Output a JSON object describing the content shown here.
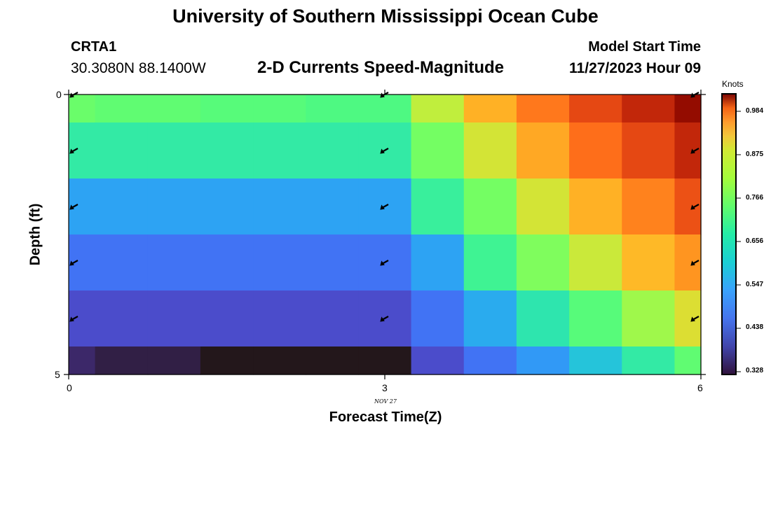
{
  "header": {
    "title": "University of Southern Mississippi Ocean Cube",
    "station": "CRTA1",
    "coords": "30.3080N  88.1400W",
    "subtitle": "2-D Currents Speed-Magnitude",
    "model_start_label": "Model Start Time",
    "model_start_value": "11/27/2023 Hour 09"
  },
  "footer": {
    "title": "University of Southern Mississippi Ocean Cube"
  },
  "chart_data": {
    "type": "heatmap",
    "title": "2-D Currents Speed-Magnitude",
    "xlabel": "Forecast Time(Z)",
    "ylabel": "Depth (ft)",
    "date_label": "NOV 27",
    "x_ticks": [
      0,
      3,
      6
    ],
    "y_ticks": [
      0,
      5
    ],
    "xlim": [
      0,
      6
    ],
    "ylim": [
      0,
      5
    ],
    "colorbar": {
      "title": "Knots",
      "ticks": [
        "0.984",
        "0.875",
        "0.766",
        "0.656",
        "0.547",
        "0.438",
        "0.328"
      ],
      "min": 0.31,
      "max": 1.03
    },
    "x_edges": [
      0,
      0.25,
      0.75,
      1.25,
      1.75,
      2.25,
      2.75,
      3.25,
      3.75,
      4.25,
      4.75,
      5.25,
      5.75,
      6.0
    ],
    "depth_edges": [
      0,
      0.5,
      1.5,
      2.5,
      3.5,
      4.5,
      5.0
    ],
    "speed_knots": [
      [
        0.63,
        0.62,
        0.62,
        0.61,
        0.61,
        0.6,
        0.6,
        0.71,
        0.8,
        0.86,
        0.91,
        0.95,
        1.01
      ],
      [
        0.56,
        0.56,
        0.56,
        0.56,
        0.56,
        0.56,
        0.56,
        0.64,
        0.73,
        0.81,
        0.87,
        0.91,
        0.95
      ],
      [
        0.46,
        0.46,
        0.46,
        0.46,
        0.46,
        0.46,
        0.46,
        0.57,
        0.64,
        0.73,
        0.8,
        0.85,
        0.9
      ],
      [
        0.41,
        0.41,
        0.41,
        0.41,
        0.41,
        0.41,
        0.41,
        0.46,
        0.58,
        0.65,
        0.72,
        0.79,
        0.83
      ],
      [
        0.37,
        0.37,
        0.37,
        0.37,
        0.37,
        0.37,
        0.37,
        0.41,
        0.47,
        0.55,
        0.61,
        0.68,
        0.74
      ],
      [
        0.33,
        0.32,
        0.32,
        0.31,
        0.31,
        0.3,
        0.3,
        0.37,
        0.41,
        0.45,
        0.5,
        0.56,
        0.62
      ]
    ],
    "vectors": {
      "times": [
        0,
        3,
        6
      ],
      "depths": [
        0,
        1,
        2,
        3,
        4
      ],
      "direction": "toward southwest"
    }
  }
}
